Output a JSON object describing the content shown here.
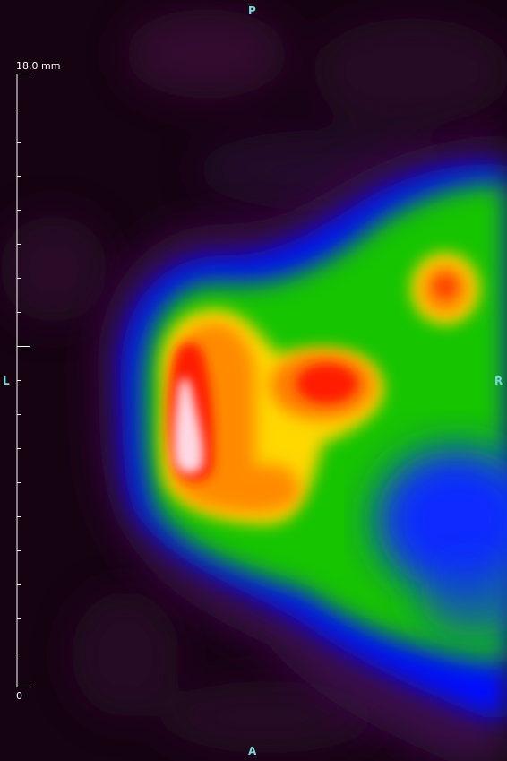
{
  "orientation": {
    "top": "P",
    "bottom": "A",
    "left": "L",
    "right": "R"
  },
  "ruler": {
    "max_label": "18.0 mm",
    "min_label": "0",
    "major_ticks": 2,
    "minor_ticks_between": 17
  },
  "colormap": {
    "background": "#160312",
    "low": "#2a0a2a",
    "blue": "#0000ff",
    "green": "#22cc00",
    "yellow": "#ffe000",
    "orange": "#ff7a00",
    "red": "#ff1a00",
    "white": "#ffe0ea"
  }
}
